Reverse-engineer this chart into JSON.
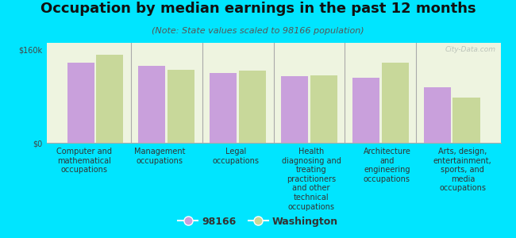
{
  "title": "Occupation by median earnings in the past 12 months",
  "subtitle": "(Note: State values scaled to 98166 population)",
  "categories": [
    "Computer and\nmathematical\noccupations",
    "Management\noccupations",
    "Legal\noccupations",
    "Health\ndiagnosing and\ntreating\npractitioners\nand other\ntechnical\noccupations",
    "Architecture\nand\nengineering\noccupations",
    "Arts, design,\nentertainment,\nsports, and\nmedia\noccupations"
  ],
  "values_98166": [
    138000,
    132000,
    120000,
    114000,
    112000,
    95000
  ],
  "values_washington": [
    152000,
    126000,
    124000,
    116000,
    138000,
    78000
  ],
  "color_98166": "#c9a0dc",
  "color_washington": "#c8d89a",
  "background_color": "#00e5ff",
  "plot_bg_color": "#eef4e0",
  "ylim": [
    0,
    172000
  ],
  "yticks": [
    0,
    160000
  ],
  "ytick_labels": [
    "$0",
    "$160k"
  ],
  "legend_label_98166": "98166",
  "legend_label_washington": "Washington",
  "watermark": "City-Data.com",
  "title_fontsize": 13,
  "subtitle_fontsize": 8,
  "tick_fontsize": 7,
  "xlabel_fontsize": 7
}
